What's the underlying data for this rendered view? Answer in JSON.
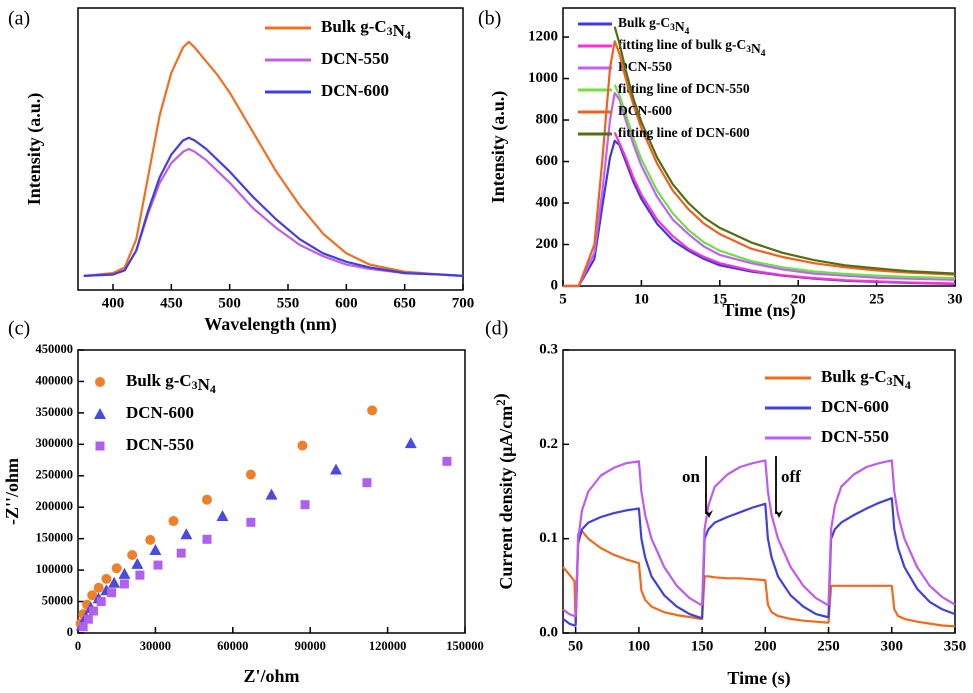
{
  "chart_data": [
    {
      "type": "line",
      "label": "(a)",
      "xlabel": "Wavelength (nm)",
      "ylabel": "Intensity (a.u.)",
      "xlim": [
        370,
        700
      ],
      "xticks": [
        400,
        450,
        500,
        550,
        600,
        650,
        700
      ],
      "ylim": [
        0,
        1
      ],
      "legend": "upper right",
      "x": [
        375,
        400,
        410,
        420,
        430,
        440,
        450,
        460,
        465,
        470,
        480,
        490,
        500,
        520,
        540,
        560,
        580,
        600,
        620,
        650,
        680,
        700
      ],
      "series": [
        {
          "name": "Bulk g-C3N4",
          "color": "#f07020",
          "values": [
            0.05,
            0.06,
            0.08,
            0.18,
            0.4,
            0.62,
            0.77,
            0.86,
            0.88,
            0.86,
            0.81,
            0.76,
            0.7,
            0.56,
            0.42,
            0.3,
            0.2,
            0.13,
            0.09,
            0.065,
            0.055,
            0.05
          ]
        },
        {
          "name": "DCN-550",
          "color": "#c060e0",
          "values": [
            0.05,
            0.055,
            0.07,
            0.14,
            0.27,
            0.38,
            0.45,
            0.49,
            0.5,
            0.49,
            0.46,
            0.42,
            0.38,
            0.29,
            0.22,
            0.16,
            0.12,
            0.09,
            0.075,
            0.06,
            0.055,
            0.05
          ]
        },
        {
          "name": "DCN-600",
          "color": "#4040e0",
          "values": [
            0.05,
            0.055,
            0.07,
            0.14,
            0.28,
            0.4,
            0.48,
            0.53,
            0.54,
            0.53,
            0.5,
            0.46,
            0.42,
            0.33,
            0.25,
            0.18,
            0.13,
            0.1,
            0.08,
            0.06,
            0.055,
            0.05
          ]
        }
      ]
    },
    {
      "type": "line",
      "label": "(b)",
      "xlabel": "Time (ns)",
      "ylabel": "Intensity (a.u.)",
      "xlim": [
        5,
        30
      ],
      "xticks": [
        5,
        10,
        15,
        20,
        25,
        30
      ],
      "ylim": [
        0,
        1340
      ],
      "yticks": [
        0,
        200,
        400,
        600,
        800,
        1000,
        1200
      ],
      "legend": "upper right",
      "x": [
        5,
        6,
        7,
        7.5,
        8,
        8.3,
        8.6,
        9,
        9.5,
        10,
        11,
        12,
        13,
        14,
        15,
        17,
        19,
        21,
        23,
        25,
        27,
        30
      ],
      "series": [
        {
          "name": "Bulk g-C3N4",
          "color": "#3a3ae0",
          "values": [
            0,
            0,
            130,
            380,
            620,
            700,
            680,
            600,
            500,
            420,
            300,
            220,
            170,
            130,
            100,
            70,
            50,
            35,
            25,
            20,
            15,
            10
          ]
        },
        {
          "name": "fitting line of bulk g-C3N4",
          "color": "#ff30d0",
          "values": [
            null,
            null,
            null,
            null,
            null,
            740,
            690,
            620,
            520,
            440,
            320,
            240,
            180,
            140,
            110,
            75,
            52,
            38,
            28,
            22,
            17,
            12
          ]
        },
        {
          "name": "DCN-550",
          "color": "#c060ff",
          "values": [
            0,
            0,
            160,
            450,
            800,
            930,
            900,
            800,
            680,
            580,
            430,
            320,
            250,
            190,
            150,
            110,
            80,
            60,
            50,
            40,
            35,
            30
          ]
        },
        {
          "name": "fitting line of DCN-550",
          "color": "#70e040",
          "values": [
            null,
            null,
            null,
            null,
            null,
            970,
            920,
            830,
            710,
            610,
            460,
            350,
            270,
            210,
            170,
            120,
            90,
            70,
            58,
            50,
            44,
            38
          ]
        },
        {
          "name": "DCN-600",
          "color": "#f06020",
          "values": [
            0,
            0,
            200,
            600,
            1050,
            1180,
            1120,
            1000,
            870,
            760,
            590,
            460,
            370,
            300,
            250,
            180,
            140,
            110,
            90,
            75,
            65,
            55
          ]
        },
        {
          "name": "fitting line of DCN-600",
          "color": "#507010",
          "values": [
            null,
            null,
            null,
            null,
            null,
            1250,
            1170,
            1040,
            900,
            790,
            620,
            490,
            400,
            330,
            280,
            210,
            160,
            125,
            100,
            85,
            72,
            60
          ]
        }
      ]
    },
    {
      "type": "scatter",
      "label": "(c)",
      "xlabel": "Z'/ohm",
      "ylabel": "-Z''/ohm",
      "xlim": [
        0,
        150000
      ],
      "xticks": [
        0,
        30000,
        60000,
        90000,
        120000,
        150000
      ],
      "ylim": [
        0,
        450000
      ],
      "yticks": [
        0,
        50000,
        100000,
        150000,
        200000,
        250000,
        300000,
        350000,
        400000,
        450000
      ],
      "legend": "upper left",
      "series": [
        {
          "name": "Bulk g-C3N4",
          "color": "#f07f2a",
          "marker": "circle",
          "x": [
            1000,
            2000,
            3500,
            5500,
            8000,
            11000,
            15000,
            21000,
            28000,
            37000,
            50000,
            67000,
            87000,
            114000
          ],
          "values": [
            15000,
            30000,
            45000,
            60000,
            72000,
            86000,
            103000,
            124000,
            148000,
            178000,
            212000,
            252000,
            298000,
            354000
          ]
        },
        {
          "name": "DCN-600",
          "color": "#4a4ae0",
          "marker": "triangle",
          "x": [
            1500,
            3000,
            5000,
            8000,
            11000,
            14000,
            18000,
            23000,
            30000,
            42000,
            56000,
            75000,
            100000,
            129000
          ],
          "values": [
            12000,
            25000,
            40000,
            55000,
            68000,
            80000,
            94000,
            110000,
            132000,
            157000,
            186000,
            220000,
            260000,
            302000
          ]
        },
        {
          "name": "DCN-550",
          "color": "#b060f0",
          "marker": "square",
          "x": [
            2000,
            4000,
            6000,
            9000,
            13000,
            18000,
            24000,
            31000,
            40000,
            50000,
            67000,
            88000,
            112000,
            143000
          ],
          "values": [
            10000,
            22000,
            35000,
            50000,
            64000,
            78000,
            92000,
            108000,
            127000,
            149000,
            176000,
            204000,
            239000,
            273000
          ]
        }
      ]
    },
    {
      "type": "line",
      "label": "(d)",
      "xlabel": "Time (s)",
      "ylabel": "Current density (μA/cm2)",
      "xlim": [
        40,
        350
      ],
      "xticks": [
        50,
        100,
        150,
        200,
        250,
        300,
        350
      ],
      "ylim": [
        0,
        0.3
      ],
      "yticks": [
        {
          "value": 0,
          "label": "0.0"
        },
        0.1,
        0.2,
        0.3
      ],
      "legend": "upper right",
      "annotations": [
        "on",
        "off"
      ],
      "x": [
        40,
        45,
        49,
        50,
        52,
        55,
        60,
        70,
        80,
        90,
        100,
        102,
        105,
        110,
        120,
        130,
        140,
        149,
        150,
        152,
        155,
        160,
        170,
        180,
        190,
        200,
        202,
        205,
        210,
        220,
        230,
        240,
        249,
        250,
        252,
        255,
        260,
        270,
        280,
        290,
        300,
        302,
        305,
        310,
        320,
        330,
        340,
        350
      ],
      "series": [
        {
          "name": "Bulk g-C3N4",
          "color": "#f06a1a",
          "values": [
            0.07,
            0.062,
            0.055,
            0.01,
            0.105,
            0.108,
            0.1,
            0.09,
            0.083,
            0.078,
            0.074,
            0.045,
            0.035,
            0.028,
            0.022,
            0.019,
            0.017,
            0.015,
            0.015,
            0.06,
            0.06,
            0.059,
            0.058,
            0.058,
            0.057,
            0.056,
            0.03,
            0.022,
            0.018,
            0.015,
            0.013,
            0.012,
            0.011,
            0.011,
            0.05,
            0.05,
            0.05,
            0.05,
            0.05,
            0.05,
            0.05,
            0.025,
            0.018,
            0.015,
            0.012,
            0.01,
            0.008,
            0.007
          ]
        },
        {
          "name": "DCN-600",
          "color": "#4040e0",
          "values": [
            0.015,
            0.01,
            0.008,
            0.008,
            0.095,
            0.11,
            0.117,
            0.123,
            0.127,
            0.13,
            0.132,
            0.1,
            0.08,
            0.06,
            0.04,
            0.028,
            0.02,
            0.016,
            0.016,
            0.1,
            0.11,
            0.117,
            0.123,
            0.128,
            0.133,
            0.137,
            0.1,
            0.08,
            0.06,
            0.04,
            0.028,
            0.02,
            0.017,
            0.017,
            0.1,
            0.11,
            0.117,
            0.125,
            0.132,
            0.138,
            0.143,
            0.11,
            0.09,
            0.07,
            0.047,
            0.033,
            0.025,
            0.02
          ]
        },
        {
          "name": "DCN-550",
          "color": "#c05af0",
          "values": [
            0.025,
            0.02,
            0.018,
            0.018,
            0.1,
            0.13,
            0.15,
            0.167,
            0.175,
            0.18,
            0.182,
            0.15,
            0.125,
            0.1,
            0.07,
            0.05,
            0.037,
            0.03,
            0.03,
            0.11,
            0.135,
            0.155,
            0.168,
            0.176,
            0.18,
            0.183,
            0.15,
            0.125,
            0.1,
            0.07,
            0.05,
            0.037,
            0.03,
            0.03,
            0.11,
            0.135,
            0.155,
            0.168,
            0.176,
            0.18,
            0.183,
            0.15,
            0.125,
            0.1,
            0.07,
            0.05,
            0.038,
            0.03
          ]
        }
      ]
    }
  ]
}
